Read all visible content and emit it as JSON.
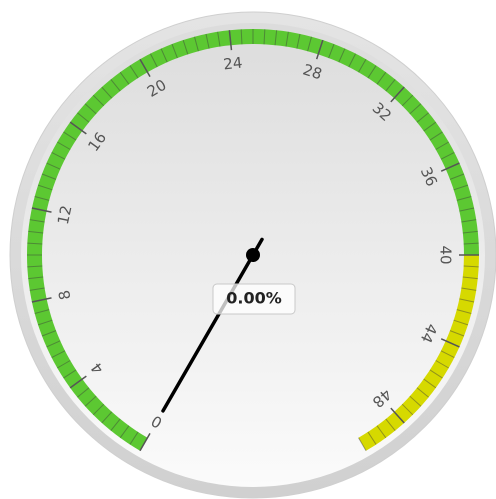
{
  "chart_data": {
    "type": "gauge",
    "values": [
      0
    ],
    "value_labels": [
      "0.00%"
    ],
    "ylim": [
      0,
      50
    ],
    "yticks": [
      0,
      4,
      8,
      12,
      16,
      20,
      24,
      28,
      32,
      36,
      40,
      44,
      48
    ],
    "minor_tick_step": 0.5,
    "bands": [
      {
        "from": 0,
        "to": 40,
        "color": "#5cc832"
      },
      {
        "from": 40,
        "to": 50,
        "color": "#d6d900"
      }
    ],
    "needle_color": "#000000"
  }
}
